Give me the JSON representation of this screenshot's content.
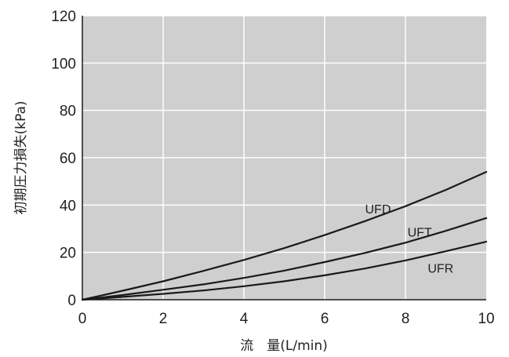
{
  "chart_data": {
    "type": "line",
    "xlabel": "流　量(L/min)",
    "ylabel": "初期圧力損失(kPa)",
    "xlim": [
      0,
      10
    ],
    "ylim": [
      0,
      120
    ],
    "x_ticks": [
      "0",
      "2",
      "4",
      "6",
      "8",
      "10"
    ],
    "y_ticks": [
      "0",
      "20",
      "40",
      "60",
      "80",
      "100",
      "120"
    ],
    "grid": true,
    "legend": "inline-labels",
    "colors": {
      "plot_background": "#cfcfcf",
      "grid": "#ffffff",
      "line": "#1a1a1a"
    },
    "series": [
      {
        "name": "UFD",
        "x": [
          0,
          1,
          2,
          3,
          4,
          5,
          6,
          7,
          8,
          9,
          10
        ],
        "values": [
          0,
          3.8,
          7.8,
          12.2,
          16.8,
          21.8,
          27.3,
          33.2,
          39.5,
          46.4,
          54
        ]
      },
      {
        "name": "UFT",
        "x": [
          0,
          1,
          2,
          3,
          4,
          5,
          6,
          7,
          8,
          9,
          10
        ],
        "values": [
          0,
          2.0,
          4.2,
          6.5,
          9.2,
          12.3,
          15.9,
          19.8,
          24.1,
          29.1,
          34.5
        ]
      },
      {
        "name": "UFR",
        "x": [
          0,
          1,
          2,
          3,
          4,
          5,
          6,
          7,
          8,
          9,
          10
        ],
        "values": [
          0,
          1.2,
          2.5,
          3.9,
          5.7,
          7.8,
          10.3,
          13.2,
          16.6,
          20.5,
          24.5
        ]
      }
    ]
  }
}
